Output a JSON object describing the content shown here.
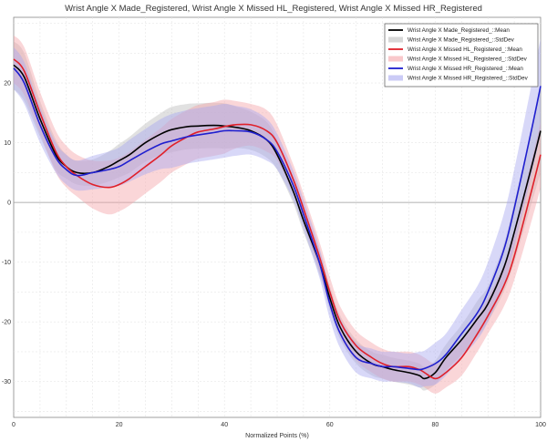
{
  "chart_data": {
    "type": "line",
    "title": "Wrist Angle X Made_Registered, Wrist Angle X Missed HL_Registered, Wrist Angle X Missed HR_Registered",
    "xlabel": "Normalized Points (%)",
    "ylabel": "",
    "xlim": [
      0,
      100
    ],
    "ylim": [
      -36,
      31
    ],
    "xticks": [
      0,
      20,
      40,
      60,
      80,
      100
    ],
    "yticks": [
      -30,
      -20,
      -10,
      0,
      10,
      20
    ],
    "grid": true,
    "legend_position": "top-right",
    "series": [
      {
        "name": "Wrist Angle X Made_Registered_::Mean",
        "legend_std": "Wrist Angle X Made_Registered_::StdDev",
        "color": "#000000",
        "band_color": "#bdbdbd",
        "x": [
          0,
          2,
          5,
          8,
          10,
          12,
          15,
          18,
          20,
          22,
          25,
          28,
          30,
          33,
          35,
          38,
          40,
          42,
          45,
          48,
          50,
          53,
          55,
          58,
          60,
          62,
          65,
          68,
          70,
          72,
          75,
          77,
          78,
          80,
          82,
          85,
          88,
          90,
          93,
          95,
          98,
          100
        ],
        "y": [
          23,
          21,
          14,
          8,
          6,
          5,
          5,
          6,
          7,
          8,
          10,
          11.5,
          12.2,
          12.7,
          12.8,
          12.9,
          12.8,
          12.6,
          12,
          10.5,
          8,
          2,
          -3,
          -10,
          -16,
          -21,
          -25,
          -27,
          -27.5,
          -28,
          -28.5,
          -29,
          -29.5,
          -28.5,
          -26,
          -23,
          -19.5,
          -17,
          -11,
          -5,
          5,
          12
        ],
        "std": [
          4,
          4,
          3,
          2.5,
          2,
          2,
          2.2,
          2.5,
          2.8,
          3,
          3.2,
          3.5,
          3.8,
          3.8,
          3.8,
          3.8,
          3.8,
          3.5,
          3.2,
          3,
          2.5,
          2,
          2,
          2,
          2,
          2,
          2,
          2,
          2,
          2,
          2,
          2,
          2,
          2,
          2.2,
          2.5,
          3,
          3,
          4,
          5,
          6,
          7
        ]
      },
      {
        "name": "Wrist Angle X Missed HL_Registered_::Mean",
        "legend_std": "Wrist Angle X Missed HL_Registered_::StdDev",
        "color": "#e0202a",
        "band_color": "#f5a3a8",
        "x": [
          0,
          2,
          5,
          8,
          10,
          12,
          15,
          18,
          20,
          22,
          25,
          28,
          30,
          33,
          35,
          38,
          40,
          42,
          45,
          48,
          50,
          53,
          55,
          58,
          60,
          62,
          65,
          68,
          70,
          72,
          75,
          77,
          78,
          80,
          82,
          85,
          88,
          90,
          93,
          95,
          98,
          100
        ],
        "y": [
          24,
          22,
          15,
          8.5,
          6,
          4.5,
          3,
          2.5,
          3,
          4,
          6,
          8,
          9.5,
          11,
          11.8,
          12.3,
          12.7,
          13,
          13,
          12,
          10,
          4,
          -1,
          -9,
          -15,
          -20,
          -24,
          -26,
          -27,
          -27.5,
          -27.5,
          -28,
          -28.5,
          -29.5,
          -28.5,
          -26,
          -22,
          -19,
          -14,
          -9,
          1,
          8
        ],
        "std": [
          4,
          4,
          3.5,
          3.5,
          3.5,
          3.5,
          4,
          4.5,
          4.5,
          4.5,
          4.5,
          4.5,
          4.5,
          4.5,
          4.5,
          4.5,
          4.5,
          4,
          3.5,
          3.5,
          3,
          2.5,
          2.5,
          2.5,
          2.5,
          2.5,
          2.5,
          2.5,
          2.5,
          2.5,
          2.5,
          2.5,
          2.5,
          2.5,
          2.5,
          3,
          3,
          3,
          3.5,
          4,
          5,
          5.5
        ]
      },
      {
        "name": "Wrist Angle X Missed HR_Registered_::Mean",
        "legend_std": "Wrist Angle X Missed HR_Registered_::StdDev",
        "color": "#1f1fcf",
        "band_color": "#a8a8f0",
        "x": [
          0,
          2,
          5,
          8,
          10,
          12,
          15,
          18,
          20,
          22,
          25,
          28,
          30,
          33,
          35,
          38,
          40,
          42,
          45,
          48,
          50,
          53,
          55,
          58,
          60,
          62,
          65,
          68,
          70,
          72,
          75,
          77,
          78,
          80,
          82,
          85,
          88,
          90,
          93,
          95,
          98,
          100
        ],
        "y": [
          22.5,
          20,
          13,
          7.5,
          5.5,
          4.5,
          5,
          5.5,
          6,
          7,
          8.5,
          9.8,
          10.3,
          11,
          11.3,
          11.7,
          12,
          12,
          11.8,
          10.5,
          8.5,
          3,
          -2,
          -10,
          -17,
          -22,
          -26,
          -27,
          -27.5,
          -27.5,
          -27.8,
          -28,
          -27.8,
          -27,
          -25.5,
          -22,
          -18.5,
          -15,
          -8,
          -1,
          11,
          19.5
        ],
        "std": [
          3.5,
          3.5,
          3,
          2.5,
          2.5,
          2.5,
          2.8,
          3,
          3.2,
          3.5,
          3.8,
          4.2,
          4.5,
          4.5,
          4.5,
          4.5,
          4.5,
          4.2,
          3.8,
          3.5,
          3,
          2.5,
          2.5,
          2.5,
          2.5,
          2.5,
          2.5,
          2.5,
          2.5,
          2.5,
          2.5,
          3,
          3,
          3.5,
          3.5,
          4,
          4.5,
          5,
          6,
          6.5,
          7.5,
          8
        ]
      }
    ]
  }
}
